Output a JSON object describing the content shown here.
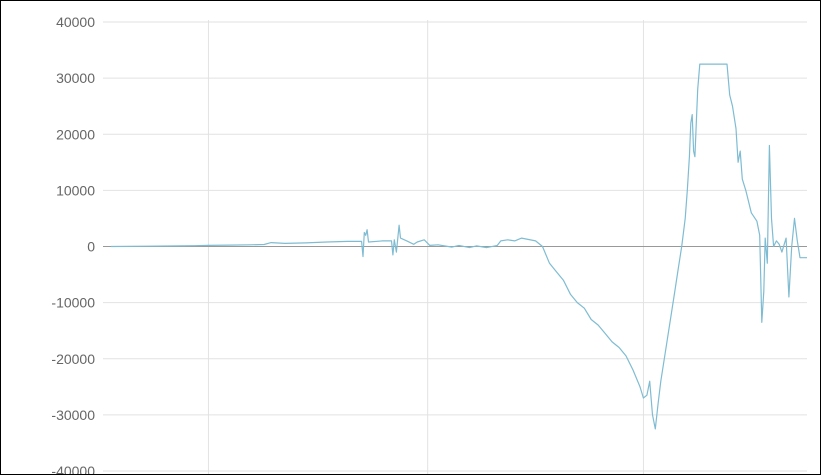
{
  "chart_data": {
    "type": "line",
    "title": "",
    "xlabel": "",
    "ylabel": "",
    "ylim": [
      -40000,
      40000
    ],
    "xlim": [
      0,
      100
    ],
    "grid": true,
    "y_ticks": [
      "40000",
      "30000",
      "20000",
      "10000",
      "0",
      "-10000",
      "-20000",
      "-30000",
      "-40000"
    ],
    "x_grid_positions": [
      14,
      45.5,
      76.5
    ],
    "line_color": "#7fbcd2",
    "zero_line_color": "#999999",
    "grid_color": "#e2e2e2",
    "series": [
      {
        "points": [
          [
            0,
            0
          ],
          [
            5,
            50
          ],
          [
            10,
            100
          ],
          [
            12,
            150
          ],
          [
            14,
            200
          ],
          [
            17,
            250
          ],
          [
            20,
            300
          ],
          [
            22,
            350
          ],
          [
            23,
            700
          ],
          [
            25,
            550
          ],
          [
            28,
            650
          ],
          [
            31,
            800
          ],
          [
            34,
            900
          ],
          [
            36,
            900
          ],
          [
            36.2,
            -1800
          ],
          [
            36.4,
            2500
          ],
          [
            36.6,
            2000
          ],
          [
            36.8,
            3000
          ],
          [
            37,
            800
          ],
          [
            39,
            1000
          ],
          [
            40.3,
            1000
          ],
          [
            40.5,
            -1500
          ],
          [
            40.7,
            1200
          ],
          [
            41,
            -1000
          ],
          [
            41.2,
            1500
          ],
          [
            41.4,
            3800
          ],
          [
            41.6,
            1500
          ],
          [
            42.5,
            1000
          ],
          [
            43.5,
            400
          ],
          [
            44,
            800
          ],
          [
            45,
            1200
          ],
          [
            45.8,
            200
          ],
          [
            47,
            300
          ],
          [
            49,
            -100
          ],
          [
            50,
            200
          ],
          [
            51.5,
            -200
          ],
          [
            52.5,
            100
          ],
          [
            54,
            -200
          ],
          [
            55.5,
            200
          ],
          [
            56,
            1000
          ],
          [
            57,
            1200
          ],
          [
            58,
            1000
          ],
          [
            59,
            1500
          ],
          [
            61,
            1000
          ],
          [
            62,
            0
          ],
          [
            63,
            -3000
          ],
          [
            64,
            -4500
          ],
          [
            65,
            -6000
          ],
          [
            66,
            -8500
          ],
          [
            67,
            -10000
          ],
          [
            68,
            -11000
          ],
          [
            69,
            -13000
          ],
          [
            70,
            -14000
          ],
          [
            71,
            -15500
          ],
          [
            72,
            -17000
          ],
          [
            73,
            -18000
          ],
          [
            74,
            -19500
          ],
          [
            75,
            -22000
          ],
          [
            76,
            -25000
          ],
          [
            76.5,
            -27000
          ],
          [
            77,
            -26500
          ],
          [
            77.4,
            -24000
          ],
          [
            77.8,
            -30000
          ],
          [
            78.2,
            -32500
          ],
          [
            78.6,
            -28000
          ],
          [
            79,
            -24000
          ],
          [
            79.5,
            -20000
          ],
          [
            80,
            -16000
          ],
          [
            80.5,
            -12000
          ],
          [
            81,
            -8000
          ],
          [
            81.5,
            -4000
          ],
          [
            82,
            0
          ],
          [
            82.5,
            5000
          ],
          [
            82.8,
            10000
          ],
          [
            83.1,
            16000
          ],
          [
            83.3,
            22000
          ],
          [
            83.5,
            23500
          ],
          [
            83.7,
            17000
          ],
          [
            83.9,
            16000
          ],
          [
            84.1,
            22000
          ],
          [
            84.3,
            28000
          ],
          [
            84.6,
            32500
          ],
          [
            85,
            32500
          ],
          [
            87,
            32500
          ],
          [
            88.5,
            32500
          ],
          [
            88.9,
            27000
          ],
          [
            89.3,
            25000
          ],
          [
            89.8,
            21000
          ],
          [
            90.1,
            15000
          ],
          [
            90.4,
            17000
          ],
          [
            90.7,
            12000
          ],
          [
            91.2,
            10000
          ],
          [
            92,
            6000
          ],
          [
            92.8,
            4500
          ],
          [
            93.2,
            2000
          ],
          [
            93.5,
            -13500
          ],
          [
            93.8,
            -8000
          ],
          [
            94,
            1500
          ],
          [
            94.3,
            -3000
          ],
          [
            94.6,
            18000
          ],
          [
            94.9,
            5000
          ],
          [
            95.2,
            0
          ],
          [
            95.6,
            1000
          ],
          [
            96,
            400
          ],
          [
            96.4,
            -1000
          ],
          [
            97,
            1500
          ],
          [
            97.4,
            -9000
          ],
          [
            97.8,
            0
          ],
          [
            98.2,
            5000
          ],
          [
            98.6,
            1000
          ],
          [
            99,
            -2000
          ],
          [
            100,
            -2000
          ]
        ]
      }
    ]
  }
}
